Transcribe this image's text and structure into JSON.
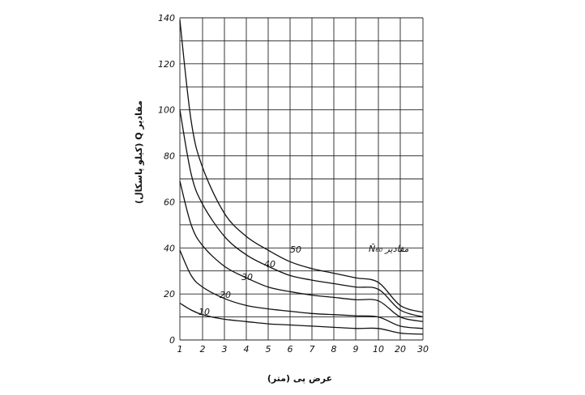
{
  "chart_data": {
    "type": "line",
    "ylabel": "مقادیر Q (کیلو پاسکال)",
    "xlabel": "عرض پی (متر)",
    "legend_label": "مقادیر N̄₆₀",
    "x_ticks": [
      "1",
      "2",
      "3",
      "4",
      "5",
      "6",
      "7",
      "8",
      "9",
      "10",
      "20",
      "30"
    ],
    "y_ticks": [
      "0",
      "20",
      "40",
      "60",
      "80",
      "100",
      "120",
      "140"
    ],
    "ylim": [
      0,
      140
    ],
    "grid": true,
    "x_scale": "piecewise: 1–10 linear, 10–30 compressed",
    "series": [
      {
        "name": "10",
        "x": [
          1,
          1.5,
          2,
          3,
          4,
          5,
          6,
          7,
          8,
          9,
          10,
          20,
          30
        ],
        "y": [
          16,
          13,
          11,
          9,
          8,
          7,
          6.5,
          6,
          5.5,
          5,
          5,
          3,
          2.5
        ]
      },
      {
        "name": "20",
        "x": [
          1,
          1.5,
          2,
          3,
          4,
          5,
          6,
          7,
          8,
          9,
          10,
          20,
          30
        ],
        "y": [
          39,
          28,
          23,
          18,
          15,
          13.5,
          12.5,
          11.5,
          11,
          10.5,
          10,
          6,
          5
        ]
      },
      {
        "name": "30",
        "x": [
          1,
          1.5,
          2,
          3,
          4,
          5,
          6,
          7,
          8,
          9,
          10,
          20,
          30
        ],
        "y": [
          69,
          50,
          41,
          32,
          27,
          23,
          21,
          19.5,
          18.5,
          17.5,
          17,
          10,
          8
        ]
      },
      {
        "name": "40",
        "x": [
          1,
          1.5,
          2,
          3,
          4,
          5,
          6,
          7,
          8,
          9,
          10,
          20,
          30
        ],
        "y": [
          100,
          72,
          59,
          45,
          37,
          32,
          28,
          26,
          24.5,
          23,
          22,
          13,
          10
        ]
      },
      {
        "name": "50",
        "x": [
          1,
          1.5,
          2,
          3,
          4,
          5,
          6,
          7,
          8,
          9,
          10,
          20,
          30
        ],
        "y": [
          139,
          95,
          75,
          55,
          45,
          39,
          34,
          31,
          29,
          27,
          25,
          15,
          12
        ]
      }
    ]
  }
}
